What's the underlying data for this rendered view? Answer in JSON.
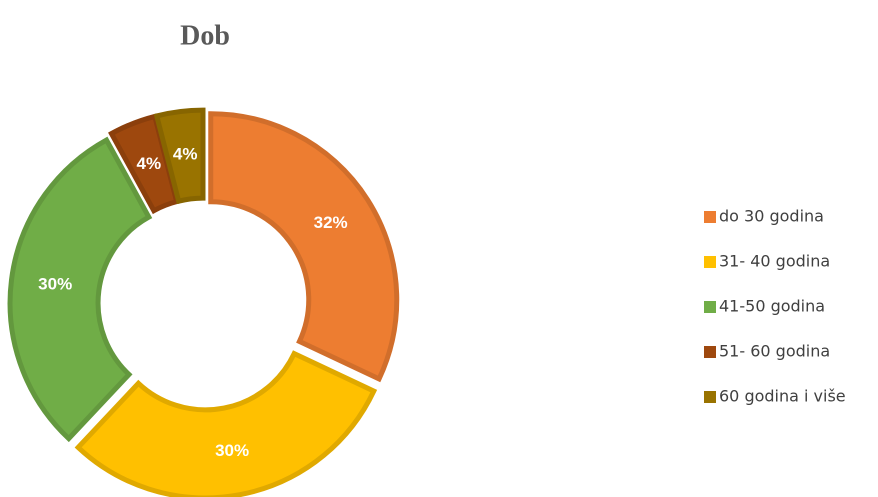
{
  "chart_data": {
    "type": "donut",
    "title": "Dob",
    "categories": [
      "do 30 godina",
      "31- 40 godina",
      "41-50 godina",
      "51- 60 godina",
      "60 godina i više"
    ],
    "values": [
      32,
      30,
      30,
      4,
      4
    ],
    "value_labels": [
      "32%",
      "30%",
      "30%",
      "4%",
      "4%"
    ],
    "colors": [
      "#ED7D31",
      "#FFC000",
      "#70AD47",
      "#9E480E",
      "#997300"
    ],
    "legend": "right"
  }
}
